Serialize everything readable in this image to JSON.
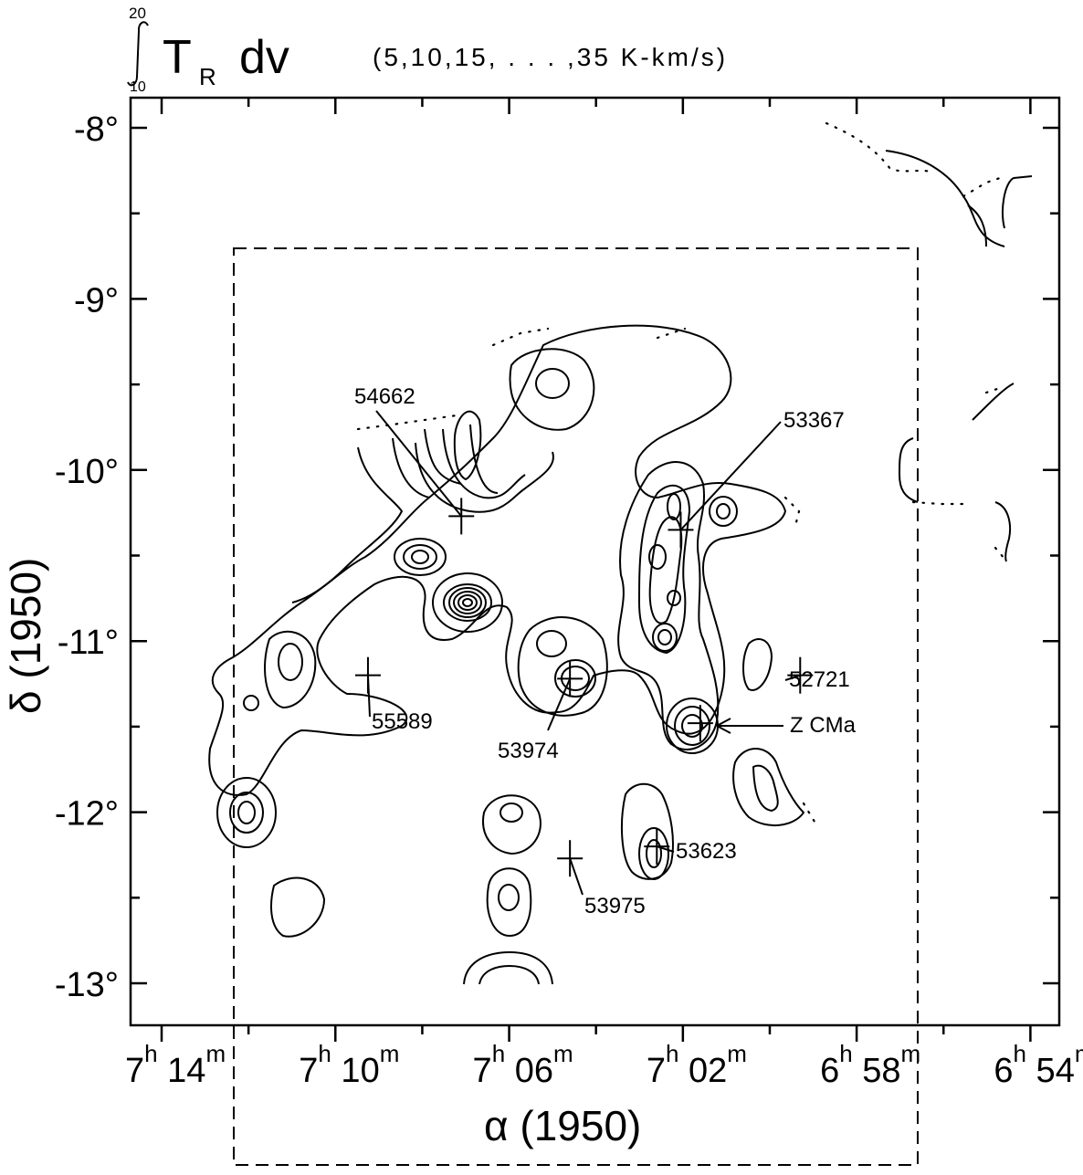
{
  "chart_data": {
    "type": "contour",
    "title": {
      "integral_upper": "20",
      "integral_lower": "10",
      "expr_main": "T",
      "expr_sub": "R",
      "expr_tail": "dv",
      "levels_text": "(5,10,15, . . . ,35 K-km/s)"
    },
    "contour_levels": [
      5,
      10,
      15,
      20,
      25,
      30,
      35
    ],
    "contour_units": "K-km/s",
    "xlabel": "α (1950)",
    "ylabel": "δ (1950)",
    "xlim_ra_minutes": [
      435,
      413
    ],
    "ylim_deg": [
      -13.2,
      -7.8
    ],
    "x_ticks": [
      {
        "h": "7",
        "m": "14",
        "ra_min": 434
      },
      {
        "h": "7",
        "m": "10",
        "ra_min": 430
      },
      {
        "h": "7",
        "m": "06",
        "ra_min": 426
      },
      {
        "h": "7",
        "m": "02",
        "ra_min": 422
      },
      {
        "h": "6",
        "m": "58",
        "ra_min": 418
      },
      {
        "h": "6",
        "m": "54",
        "ra_min": 414
      }
    ],
    "y_ticks": [
      {
        "label": "-8°",
        "dec": -8
      },
      {
        "label": "-9°",
        "dec": -9
      },
      {
        "label": "-10°",
        "dec": -10
      },
      {
        "label": "-11°",
        "dec": -11
      },
      {
        "label": "-12°",
        "dec": -12
      },
      {
        "label": "-13°",
        "dec": -13
      }
    ],
    "sources": [
      {
        "label": "54662",
        "ra_min": 427.1,
        "dec": -10.27
      },
      {
        "label": "53367",
        "ra_min": 422.05,
        "dec": -10.35
      },
      {
        "label": "55589",
        "ra_min": 429.25,
        "dec": -11.2
      },
      {
        "label": "53974",
        "ra_min": 424.6,
        "dec": -11.22
      },
      {
        "label": "52721",
        "ra_min": 419.3,
        "dec": -11.2
      },
      {
        "label": "Z CMa",
        "ra_min": 421.6,
        "dec": -11.48
      },
      {
        "label": "53623",
        "ra_min": 422.6,
        "dec": -12.2
      },
      {
        "label": "53975",
        "ra_min": 424.6,
        "dec": -12.27
      }
    ]
  }
}
